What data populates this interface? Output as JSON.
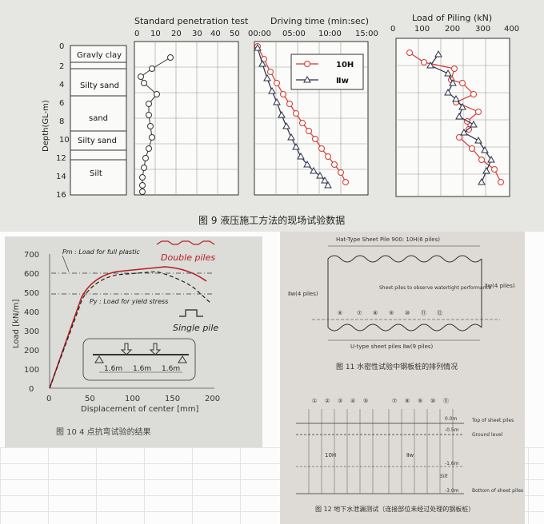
{
  "figure9": {
    "caption": "图 9   液压施工方法的现场试验数据",
    "depth_axis_label": "Depth(GL-m)",
    "depth_ticks": [
      "0",
      "2",
      "4",
      "6",
      "8",
      "10",
      "12",
      "14",
      "16"
    ],
    "soil_layers": [
      "Gravly clay",
      "Silty sand",
      "sand",
      "Silty sand",
      "Silt"
    ],
    "spt": {
      "title": "Standard penetration test",
      "ticks": [
        "0",
        "10",
        "20",
        "30",
        "40",
        "50"
      ]
    },
    "driving": {
      "title": "Driving time (min:sec)",
      "ticks": [
        "00:00",
        "05:00",
        "10:00",
        "15:00"
      ],
      "legend": [
        {
          "label": "10H",
          "color": "#d6362c",
          "marker": "circle"
        },
        {
          "label": "Ⅱw",
          "color": "#2a2f4a",
          "marker": "triangle"
        }
      ]
    },
    "load": {
      "title": "Load of Piling (kN)",
      "ticks": [
        "0",
        "100",
        "200",
        "300",
        "400"
      ]
    }
  },
  "figure10": {
    "caption": "图 10   4 点抗弯试验的结果",
    "ylabel": "Load [kN/m]",
    "xlabel": "Displacement of center [mm]",
    "yticks": [
      "0",
      "100",
      "200",
      "300",
      "400",
      "500",
      "600",
      "700"
    ],
    "xticks": [
      "0",
      "50",
      "100",
      "150",
      "200"
    ],
    "pm_label": "Pm : Load for full plastic",
    "py_label": "Py : Load for yield stress",
    "double_label": "Double piles",
    "single_label": "Single pile",
    "spans": [
      "1.6m",
      "1.6m",
      "1.6m"
    ]
  },
  "figure11": {
    "caption": "图 11   水密性试验中钢板桩的排列情况",
    "top_label": "Hat-Type Sheet Pile 900: 10H(6 piles)",
    "left_label": "Ⅱw(4 piles)",
    "right_label": "Ⅱw(4 piles)",
    "bottom_label": "U-type sheet piles  Ⅱw(9 piles)",
    "note": "Sheet piles to observe watertight performance",
    "numbers": [
      "①",
      "②",
      "③",
      "④",
      "⑤",
      "⑥",
      "⑦",
      "⑧",
      "⑨",
      "⑩",
      "⑪",
      "⑫"
    ]
  },
  "figure12": {
    "caption": "图 12   地下水泄漏测试（连接部位未经过处理的钢板桩）",
    "labels": {
      "top": "Top of sheet piles",
      "ground": "Ground level",
      "silt": "Silt",
      "bottom": "Bottom of sheet piles",
      "h10": "10H",
      "iiw": "Ⅱw"
    },
    "levels": [
      "0.0m",
      "-0.5m",
      "-1.6m",
      "-3.0m"
    ]
  }
}
